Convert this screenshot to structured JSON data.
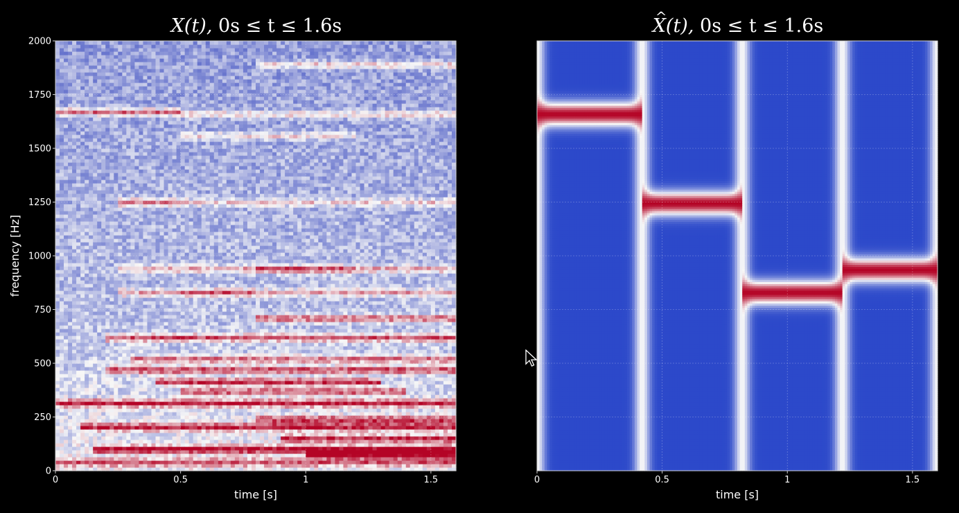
{
  "chart_data": [
    {
      "type": "heatmap",
      "title": {
        "pre": "X(t),",
        "range": "0s ≤ t ≤ 1.6s"
      },
      "xlabel": "time [s]",
      "ylabel": "frequency [Hz]",
      "xlim": [
        0,
        1.6
      ],
      "ylim": [
        0,
        2000
      ],
      "xticks": [
        0,
        0.5,
        1,
        1.5
      ],
      "xtick_labels": [
        "0",
        "0.5",
        "1",
        "1.5"
      ],
      "yticks": [
        0,
        250,
        500,
        750,
        1000,
        1250,
        1500,
        1750,
        2000
      ],
      "ytick_labels": [
        "0",
        "250",
        "500",
        "750",
        "1000",
        "1250",
        "1500",
        "1750",
        "2000"
      ],
      "colormap": [
        "#3b4cc0",
        "#f7f7f7",
        "#b40426"
      ],
      "grid": true,
      "harmonic_lines": [
        {
          "t0": 0.0,
          "t1": 0.5,
          "freq": 1670,
          "level": 0.85
        },
        {
          "t0": 0.5,
          "t1": 1.6,
          "freq": 1660,
          "level": 0.5
        },
        {
          "t0": 0.25,
          "t1": 0.5,
          "freq": 1250,
          "level": 0.8
        },
        {
          "t0": 0.5,
          "t1": 1.6,
          "freq": 1250,
          "level": 0.5
        },
        {
          "t0": 0.8,
          "t1": 1.6,
          "freq": 1890,
          "level": 0.55
        },
        {
          "t0": 0.5,
          "t1": 1.2,
          "freq": 1560,
          "level": 0.45
        },
        {
          "t0": 0.8,
          "t1": 1.2,
          "freq": 940,
          "level": 0.9
        },
        {
          "t0": 1.2,
          "t1": 1.6,
          "freq": 940,
          "level": 0.55
        },
        {
          "t0": 0.25,
          "t1": 0.8,
          "freq": 940,
          "level": 0.55
        },
        {
          "t0": 0.5,
          "t1": 0.8,
          "freq": 830,
          "level": 0.85
        },
        {
          "t0": 0.25,
          "t1": 0.5,
          "freq": 830,
          "level": 0.55
        },
        {
          "t0": 0.8,
          "t1": 1.6,
          "freq": 830,
          "level": 0.55
        },
        {
          "t0": 0.8,
          "t1": 1.6,
          "freq": 710,
          "level": 0.75
        },
        {
          "t0": 0.2,
          "t1": 1.6,
          "freq": 620,
          "level": 0.8
        },
        {
          "t0": 0.3,
          "t1": 1.6,
          "freq": 520,
          "level": 0.65
        },
        {
          "t0": 0.2,
          "t1": 1.6,
          "freq": 470,
          "level": 0.8
        },
        {
          "t0": 0.4,
          "t1": 1.3,
          "freq": 415,
          "level": 0.85
        },
        {
          "t0": 0.5,
          "t1": 1.4,
          "freq": 370,
          "level": 0.7
        },
        {
          "t0": 0.0,
          "t1": 1.6,
          "freq": 315,
          "level": 0.9
        },
        {
          "t0": 0.8,
          "t1": 1.6,
          "freq": 240,
          "level": 0.75
        },
        {
          "t0": 0.1,
          "t1": 1.6,
          "freq": 205,
          "level": 0.85
        },
        {
          "t0": 0.9,
          "t1": 1.6,
          "freq": 150,
          "level": 0.8
        },
        {
          "t0": 0.15,
          "t1": 1.6,
          "freq": 100,
          "level": 0.95
        },
        {
          "t0": 1.0,
          "t1": 1.6,
          "freq": 75,
          "level": 0.9
        },
        {
          "t0": 0.0,
          "t1": 1.6,
          "freq": 40,
          "level": 0.6
        }
      ]
    },
    {
      "type": "heatmap",
      "title": {
        "pre": "X(t),",
        "range": "0s ≤ t ≤ 1.6s",
        "accent": "^"
      },
      "xlabel": "time [s]",
      "xlim": [
        0,
        1.6
      ],
      "ylim": [
        0,
        2000
      ],
      "xticks": [
        0,
        0.5,
        1,
        1.5
      ],
      "xtick_labels": [
        "0",
        "0.5",
        "1",
        "1.5"
      ],
      "yticks": [
        250,
        500,
        750,
        1000,
        1250,
        1500,
        1750
      ],
      "colormap": [
        "#2442c8",
        "#f7f7f7",
        "#b40426"
      ],
      "grid": true,
      "segments": [
        {
          "t0": 0.0,
          "t1": 0.42,
          "freq": 1660
        },
        {
          "t0": 0.42,
          "t1": 0.82,
          "freq": 1245
        },
        {
          "t0": 0.82,
          "t1": 1.22,
          "freq": 830
        },
        {
          "t0": 1.22,
          "t1": 1.6,
          "freq": 935
        }
      ],
      "transitions": [
        0.0,
        0.42,
        0.82,
        1.22,
        1.6
      ]
    }
  ]
}
